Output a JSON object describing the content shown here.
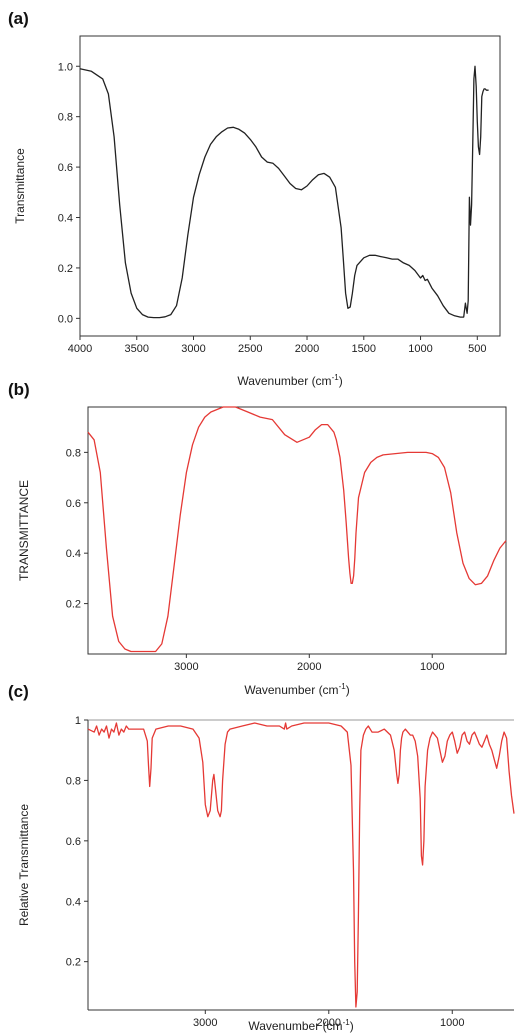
{
  "chart_data": [
    {
      "panel": "(a)",
      "type": "line",
      "xlabel": "Wavenumber (cm",
      "xlabel_sup": "-1",
      "xlabel_close": ")",
      "ylabel": "Transmittance",
      "xlim": [
        4000,
        300
      ],
      "ylim": [
        -0.07,
        1.12
      ],
      "xticks": [
        4000,
        3500,
        3000,
        2500,
        2000,
        1500,
        1000,
        500
      ],
      "yticks": [
        "0.0",
        "0.2",
        "0.4",
        "0.6",
        "0.8",
        "1.0"
      ],
      "ytick_values": [
        0.0,
        0.2,
        0.4,
        0.6,
        0.8,
        1.0
      ],
      "color": "#222222",
      "x": [
        4000,
        3900,
        3800,
        3750,
        3700,
        3650,
        3600,
        3550,
        3500,
        3450,
        3400,
        3350,
        3300,
        3250,
        3200,
        3150,
        3100,
        3050,
        3000,
        2950,
        2900,
        2850,
        2800,
        2750,
        2700,
        2650,
        2600,
        2550,
        2500,
        2450,
        2400,
        2350,
        2300,
        2250,
        2200,
        2150,
        2100,
        2050,
        2000,
        1950,
        1900,
        1850,
        1800,
        1750,
        1700,
        1680,
        1660,
        1640,
        1620,
        1600,
        1580,
        1560,
        1500,
        1450,
        1400,
        1350,
        1300,
        1250,
        1200,
        1150,
        1100,
        1050,
        1000,
        980,
        960,
        940,
        900,
        850,
        800,
        750,
        700,
        650,
        620,
        605,
        590,
        580,
        570,
        560,
        550,
        540,
        530,
        520,
        510,
        500,
        490,
        480,
        470,
        460,
        450,
        440,
        430,
        420,
        400
      ],
      "y": [
        0.99,
        0.98,
        0.95,
        0.89,
        0.72,
        0.45,
        0.22,
        0.1,
        0.04,
        0.015,
        0.005,
        0.003,
        0.003,
        0.006,
        0.015,
        0.05,
        0.16,
        0.33,
        0.48,
        0.57,
        0.64,
        0.69,
        0.72,
        0.74,
        0.755,
        0.758,
        0.75,
        0.735,
        0.71,
        0.68,
        0.64,
        0.62,
        0.615,
        0.595,
        0.565,
        0.535,
        0.515,
        0.51,
        0.525,
        0.55,
        0.57,
        0.575,
        0.56,
        0.52,
        0.36,
        0.23,
        0.1,
        0.04,
        0.045,
        0.1,
        0.17,
        0.21,
        0.24,
        0.25,
        0.25,
        0.245,
        0.24,
        0.235,
        0.235,
        0.22,
        0.21,
        0.19,
        0.16,
        0.17,
        0.15,
        0.155,
        0.12,
        0.09,
        0.05,
        0.02,
        0.01,
        0.005,
        0.005,
        0.06,
        0.02,
        0.07,
        0.48,
        0.37,
        0.45,
        0.7,
        0.95,
        1.0,
        0.92,
        0.78,
        0.68,
        0.65,
        0.72,
        0.88,
        0.9,
        0.91,
        0.91,
        0.905,
        0.905
      ]
    },
    {
      "panel": "(b)",
      "type": "line",
      "xlabel": "Wavenumber (cm",
      "xlabel_sup": "-1",
      "xlabel_close": ")",
      "ylabel": "TRANSMITTANCE",
      "xlim": [
        3800,
        400
      ],
      "ylim": [
        0.0,
        0.98
      ],
      "xticks": [
        3000,
        2000,
        1000
      ],
      "yticks": [
        "0.2",
        "0.4",
        "0.6",
        "0.8"
      ],
      "ytick_values": [
        0.2,
        0.4,
        0.6,
        0.8
      ],
      "color": "#e53935",
      "x": [
        3800,
        3750,
        3700,
        3650,
        3600,
        3550,
        3500,
        3450,
        3400,
        3350,
        3300,
        3250,
        3200,
        3150,
        3100,
        3050,
        3000,
        2950,
        2900,
        2850,
        2800,
        2700,
        2600,
        2500,
        2400,
        2300,
        2200,
        2100,
        2000,
        1950,
        1900,
        1850,
        1800,
        1780,
        1750,
        1720,
        1700,
        1680,
        1670,
        1660,
        1650,
        1640,
        1630,
        1620,
        1600,
        1550,
        1500,
        1450,
        1400,
        1300,
        1200,
        1100,
        1050,
        1000,
        950,
        900,
        850,
        800,
        750,
        700,
        650,
        600,
        550,
        500,
        450,
        400
      ],
      "y": [
        0.88,
        0.85,
        0.72,
        0.42,
        0.15,
        0.05,
        0.02,
        0.01,
        0.01,
        0.01,
        0.01,
        0.01,
        0.04,
        0.15,
        0.35,
        0.55,
        0.72,
        0.83,
        0.9,
        0.94,
        0.96,
        0.98,
        0.98,
        0.96,
        0.94,
        0.93,
        0.87,
        0.84,
        0.86,
        0.89,
        0.91,
        0.91,
        0.88,
        0.85,
        0.78,
        0.65,
        0.52,
        0.38,
        0.32,
        0.28,
        0.28,
        0.31,
        0.38,
        0.48,
        0.62,
        0.72,
        0.76,
        0.78,
        0.79,
        0.795,
        0.8,
        0.8,
        0.8,
        0.795,
        0.78,
        0.74,
        0.64,
        0.48,
        0.36,
        0.3,
        0.275,
        0.28,
        0.31,
        0.37,
        0.42,
        0.45
      ]
    },
    {
      "panel": "(c)",
      "type": "line",
      "xlabel": "Wavenumber (cm",
      "xlabel_sup": "-1",
      "xlabel_close": ")",
      "ylabel": "Relative Transmittance",
      "xlim": [
        3950,
        500
      ],
      "ylim": [
        0.04,
        1.0
      ],
      "xticks": [
        3000,
        2000,
        1000
      ],
      "yticks": [
        "0.2",
        "0.4",
        "0.6",
        "0.8",
        "1"
      ],
      "ytick_values": [
        0.2,
        0.4,
        0.6,
        0.8,
        1.0
      ],
      "color": "#e53935",
      "x": [
        3950,
        3900,
        3880,
        3860,
        3840,
        3820,
        3800,
        3780,
        3760,
        3740,
        3720,
        3700,
        3680,
        3660,
        3640,
        3620,
        3600,
        3550,
        3500,
        3470,
        3460,
        3450,
        3440,
        3430,
        3400,
        3300,
        3200,
        3100,
        3050,
        3020,
        3000,
        2980,
        2960,
        2940,
        2930,
        2920,
        2900,
        2880,
        2870,
        2860,
        2840,
        2820,
        2800,
        2700,
        2600,
        2500,
        2400,
        2360,
        2350,
        2340,
        2300,
        2200,
        2100,
        2000,
        1900,
        1850,
        1820,
        1800,
        1790,
        1780,
        1770,
        1760,
        1750,
        1740,
        1720,
        1700,
        1680,
        1650,
        1600,
        1550,
        1500,
        1470,
        1450,
        1440,
        1430,
        1420,
        1410,
        1400,
        1380,
        1360,
        1340,
        1320,
        1300,
        1280,
        1260,
        1250,
        1240,
        1230,
        1220,
        1200,
        1180,
        1160,
        1140,
        1120,
        1100,
        1080,
        1060,
        1040,
        1020,
        1000,
        980,
        960,
        940,
        920,
        900,
        880,
        860,
        840,
        820,
        800,
        780,
        760,
        740,
        720,
        700,
        680,
        660,
        640,
        620,
        600,
        580,
        560,
        540,
        520,
        500
      ],
      "y": [
        0.97,
        0.96,
        0.98,
        0.95,
        0.97,
        0.96,
        0.98,
        0.94,
        0.97,
        0.96,
        0.99,
        0.95,
        0.97,
        0.96,
        0.98,
        0.97,
        0.97,
        0.97,
        0.97,
        0.93,
        0.85,
        0.78,
        0.84,
        0.94,
        0.97,
        0.98,
        0.98,
        0.97,
        0.94,
        0.86,
        0.72,
        0.68,
        0.7,
        0.8,
        0.82,
        0.78,
        0.7,
        0.68,
        0.7,
        0.8,
        0.92,
        0.96,
        0.97,
        0.98,
        0.99,
        0.98,
        0.98,
        0.97,
        0.99,
        0.97,
        0.98,
        0.99,
        0.99,
        0.99,
        0.98,
        0.96,
        0.85,
        0.5,
        0.2,
        0.05,
        0.1,
        0.35,
        0.7,
        0.9,
        0.95,
        0.97,
        0.98,
        0.96,
        0.96,
        0.97,
        0.95,
        0.9,
        0.82,
        0.79,
        0.82,
        0.9,
        0.94,
        0.96,
        0.97,
        0.96,
        0.95,
        0.95,
        0.93,
        0.88,
        0.74,
        0.55,
        0.52,
        0.6,
        0.78,
        0.9,
        0.94,
        0.96,
        0.95,
        0.94,
        0.9,
        0.86,
        0.88,
        0.93,
        0.95,
        0.96,
        0.93,
        0.89,
        0.91,
        0.95,
        0.96,
        0.93,
        0.92,
        0.95,
        0.96,
        0.94,
        0.92,
        0.91,
        0.93,
        0.95,
        0.92,
        0.9,
        0.87,
        0.84,
        0.88,
        0.93,
        0.96,
        0.94,
        0.83,
        0.75,
        0.69
      ]
    }
  ]
}
